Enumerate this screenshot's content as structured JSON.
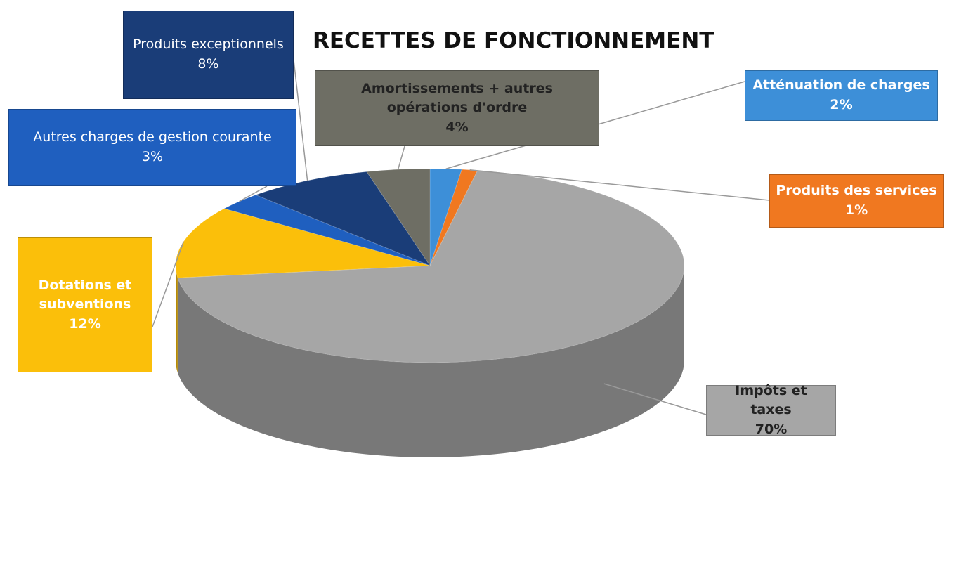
{
  "chart_data": {
    "type": "pie",
    "title": "RECETTES DE FONCTIONNEMENT",
    "categories": [
      "Atténuation de charges",
      "Produits des services",
      "Impôts et taxes",
      "Dotations et subventions",
      "Autres charges de gestion courante",
      "Produits exceptionnels",
      "Amortissements + autres opérations d'ordre"
    ],
    "values": [
      2,
      1,
      70,
      12,
      3,
      8,
      4
    ],
    "value_labels": [
      "2%",
      "1%",
      "70%",
      "12%",
      "3%",
      "8%",
      "4%"
    ],
    "colors": [
      "#3d8fd8",
      "#f07820",
      "#a6a6a6",
      "#fbbf0a",
      "#1f5fbf",
      "#1a3d78",
      "#6e6e64"
    ]
  }
}
